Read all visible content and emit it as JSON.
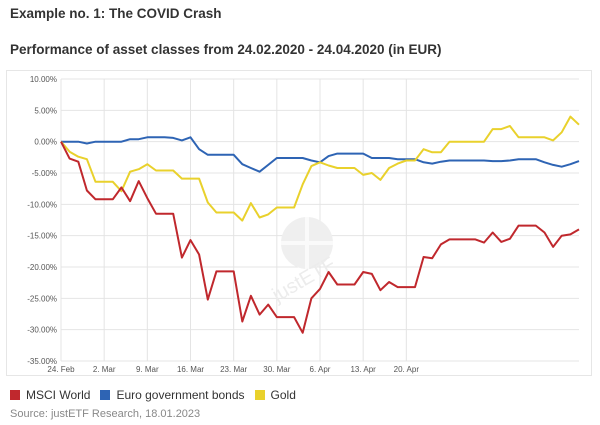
{
  "title": "Example no. 1: The COVID Crash",
  "subtitle": "Performance of asset classes from 24.02.2020 - 24.04.2020 (in EUR)",
  "source": "Source: justETF Research, 18.01.2023",
  "watermark": "justETF",
  "chart_data": {
    "type": "line",
    "ylim": [
      -35,
      10
    ],
    "y_ticks": [
      10,
      5,
      0,
      -5,
      -10,
      -15,
      -20,
      -25,
      -30,
      -35
    ],
    "y_tick_labels": [
      "10.00%",
      "5.00%",
      "0.00%",
      "-5.00%",
      "-10.00%",
      "-15.00%",
      "-20.00%",
      "-25.00%",
      "-30.00%",
      "-35.00%"
    ],
    "x_ticks": [
      {
        "index": 0,
        "label": "24. Feb"
      },
      {
        "index": 5,
        "label": "2. Mar"
      },
      {
        "index": 10,
        "label": "9. Mar"
      },
      {
        "index": 15,
        "label": "16. Mar"
      },
      {
        "index": 20,
        "label": "23. Mar"
      },
      {
        "index": 25,
        "label": "30. Mar"
      },
      {
        "index": 30,
        "label": "6. Apr"
      },
      {
        "index": 35,
        "label": "13. Apr"
      },
      {
        "index": 40,
        "label": "20. Apr"
      }
    ],
    "grid": true,
    "legend_position": "bottom-left",
    "series": [
      {
        "name": "MSCI World",
        "color": "#c0282d",
        "values": [
          0,
          -2.7,
          -3.2,
          -7.8,
          -9.2,
          -9.2,
          -9.2,
          -7.3,
          -9.5,
          -6.3,
          -9.0,
          -11.5,
          -11.5,
          -11.5,
          -18.5,
          -15.7,
          -18.0,
          -25.2,
          -20.7,
          -20.7,
          -20.7,
          -28.7,
          -24.6,
          -27.6,
          -26.0,
          -28.0,
          -28.0,
          -28.0,
          -30.5,
          -25.0,
          -23.5,
          -20.8,
          -22.8,
          -22.8,
          -22.8,
          -20.8,
          -21.1,
          -23.7,
          -22.4,
          -23.2,
          -23.2,
          -23.2,
          -18.4,
          -18.6,
          -16.4,
          -15.6,
          -15.6,
          -15.6,
          -15.6,
          -16.1,
          -14.5,
          -16.0,
          -15.5,
          -13.4,
          -13.4,
          -13.4,
          -14.5,
          -16.8,
          -15.0,
          -14.8,
          -14.0
        ]
      },
      {
        "name": "Euro government bonds",
        "color": "#2e64b4",
        "values": [
          0,
          0,
          0,
          -0.3,
          0,
          0,
          0,
          0,
          0.4,
          0.4,
          0.7,
          0.7,
          0.7,
          0.6,
          0.2,
          0.7,
          -1.2,
          -2.1,
          -2.1,
          -2.1,
          -2.1,
          -3.6,
          -4.2,
          -4.8,
          -3.7,
          -2.6,
          -2.6,
          -2.6,
          -2.6,
          -3.0,
          -3.3,
          -2.3,
          -1.9,
          -1.9,
          -1.9,
          -1.9,
          -2.6,
          -2.6,
          -2.6,
          -2.8,
          -2.8,
          -2.8,
          -3.3,
          -3.5,
          -3.2,
          -3.0,
          -3.0,
          -3.0,
          -3.0,
          -3.0,
          -3.1,
          -3.1,
          -3.0,
          -2.8,
          -2.8,
          -2.8,
          -3.3,
          -3.7,
          -4.0,
          -3.6,
          -3.1
        ]
      },
      {
        "name": "Gold",
        "color": "#e9d12c",
        "values": [
          0,
          -1.6,
          -2.4,
          -2.8,
          -6.4,
          -6.4,
          -6.4,
          -7.9,
          -4.8,
          -4.4,
          -3.6,
          -4.6,
          -4.6,
          -4.6,
          -5.9,
          -5.9,
          -5.9,
          -9.7,
          -11.3,
          -11.3,
          -11.3,
          -12.6,
          -9.8,
          -12.1,
          -11.6,
          -10.5,
          -10.5,
          -10.5,
          -6.8,
          -3.9,
          -3.3,
          -3.8,
          -4.2,
          -4.2,
          -4.2,
          -5.3,
          -5.0,
          -6.1,
          -4.2,
          -3.5,
          -3.0,
          -3.0,
          -1.2,
          -1.7,
          -1.7,
          0,
          0,
          0,
          0,
          0,
          2.0,
          2.0,
          2.5,
          0.7,
          0.7,
          0.7,
          0.7,
          0.2,
          1.5,
          4.0,
          2.7
        ]
      }
    ]
  }
}
